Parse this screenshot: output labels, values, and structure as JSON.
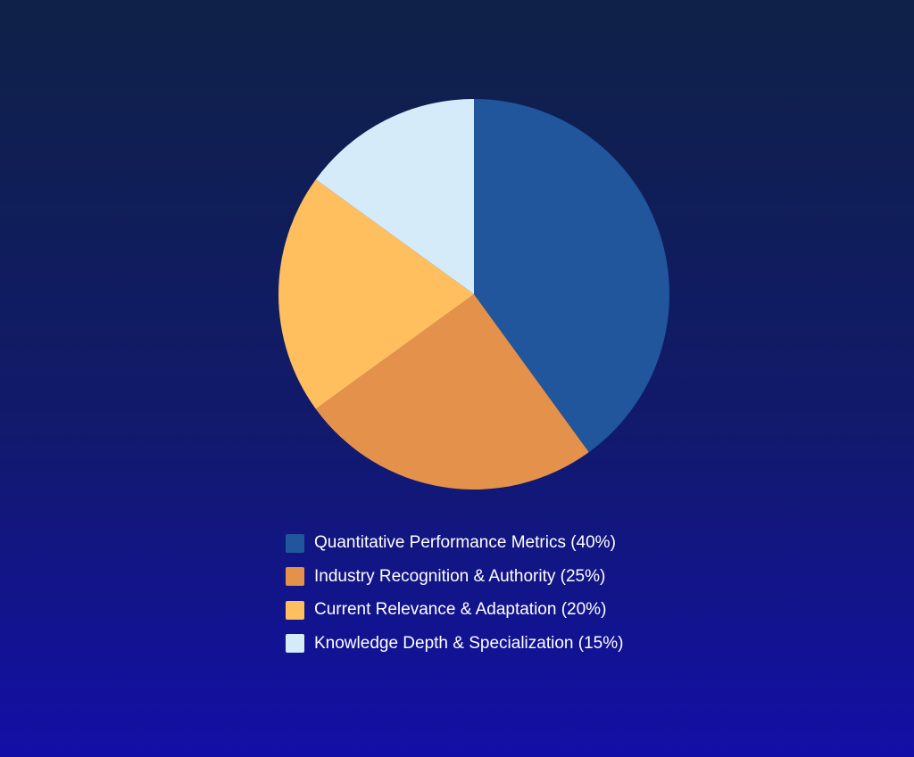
{
  "chart_data": {
    "type": "pie",
    "categories": [
      "Quantitative Performance Metrics",
      "Industry Recognition & Authority",
      "Current Relevance & Adaptation",
      "Knowledge Depth & Specialization"
    ],
    "values": [
      40,
      25,
      20,
      15
    ],
    "colors": [
      "#21559c",
      "#e4914b",
      "#ffbf5e",
      "#d5ebfa"
    ],
    "legend": {
      "placement": "bottom",
      "labels": [
        "Quantitative Performance Metrics (40%)",
        "Industry Recognition & Authority (25%)",
        "Current Relevance & Adaptation (20%)",
        "Knowledge Depth & Specialization (15%)"
      ]
    },
    "start_angle": "12 o'clock",
    "direction": "clockwise"
  }
}
